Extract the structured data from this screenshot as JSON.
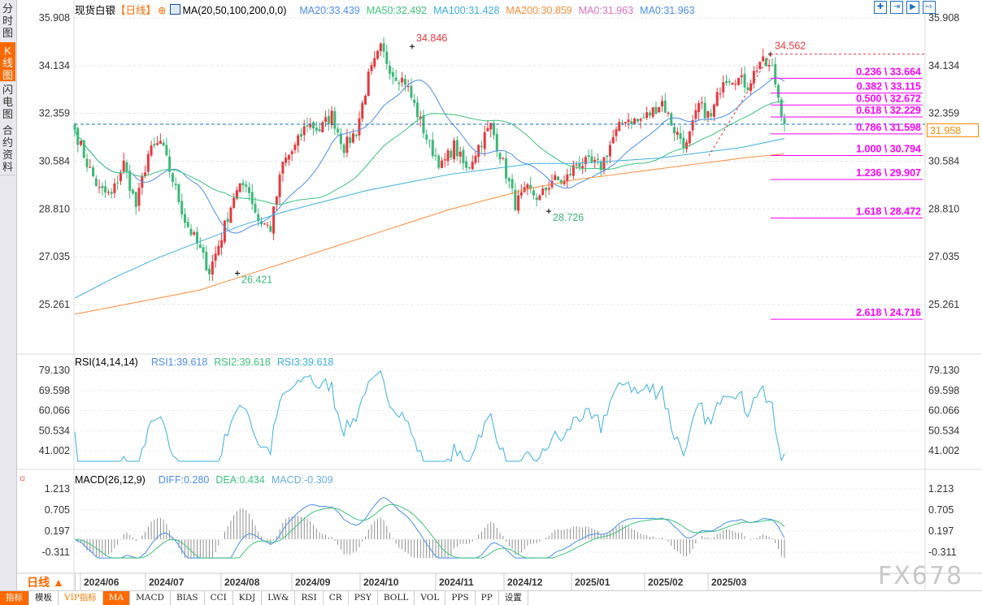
{
  "sidebar": {
    "tabs": [
      {
        "label": "分时图",
        "active": false
      },
      {
        "label": "K线图",
        "active": true
      },
      {
        "label": "闪电图",
        "active": false
      },
      {
        "label": "合约资料",
        "active": false
      }
    ]
  },
  "header": {
    "instrument": "现货白银",
    "period_tag": "【日线】",
    "ma_label": "MA(20,50,100,200,0,0)",
    "ma_values": [
      {
        "text": "MA20:33.439",
        "color": "#4a8ef0"
      },
      {
        "text": "MA50:32.492",
        "color": "#3cc47c"
      },
      {
        "text": "MA100:31.428",
        "color": "#3cb0e0"
      },
      {
        "text": "MA200:30.859",
        "color": "#ff8c3a"
      },
      {
        "text": "MA0:31.963",
        "color": "#e070c0"
      },
      {
        "text": "MA0:31.963",
        "color": "#4a8ef0"
      }
    ]
  },
  "rsi_header": {
    "label": "RSI(14,14,14)",
    "values": [
      {
        "text": "RSI1:39.618",
        "color": "#4a8ef0"
      },
      {
        "text": "RSI2:39.618",
        "color": "#3cc47c"
      },
      {
        "text": "RSI3:39.618",
        "color": "#3cb0e0"
      }
    ]
  },
  "macd_header": {
    "label": "MACD(26,12,9)",
    "values": [
      {
        "text": "DIFF:0.280",
        "color": "#4a8ef0"
      },
      {
        "text": "DEA:0.434",
        "color": "#3cc47c"
      },
      {
        "text": "MACD:-0.309",
        "color": "#6aaee0"
      }
    ]
  },
  "last_price": "31.958",
  "period_button": "日线 ▲",
  "toolbar": [
    "指标",
    "模板",
    "VIP指标",
    "MA",
    "MACD",
    "BIAS",
    "CCI",
    "KDJ",
    "LW&",
    "RSI",
    "CR",
    "PSY",
    "BOLL",
    "VOL",
    "PPS",
    "PP",
    "设置"
  ],
  "tool_icons": [
    "crosshair-icon",
    "zoom-in-icon",
    "zoom-out-icon",
    "scroll-right-icon"
  ],
  "watermark": "FX678",
  "colors": {
    "up": "#e8383d",
    "down": "#3cb878",
    "ma20": "#4a8ef0",
    "ma50": "#3cc47c",
    "ma100": "#3cb0e0",
    "ma200": "#ff8c3a",
    "fib": "#ff00ff",
    "accent": "#ff6a00"
  },
  "chart_data": [
    {
      "type": "candlestick",
      "title": "现货白银",
      "ylim": [
        25.261,
        35.908
      ],
      "yticks": [
        "35.908",
        "34.134",
        "32.359",
        "30.584",
        "28.810",
        "27.035",
        "25.261"
      ],
      "xticks": [
        "2024/06",
        "2024/07",
        "2024/08",
        "2024/09",
        "2024/10",
        "2024/11",
        "2024/12",
        "2025/01",
        "2025/02",
        "2025/03"
      ],
      "approx_closes": [
        31.75,
        30.5,
        29.5,
        29.3,
        30.5,
        28.9,
        30.84,
        31.3,
        29.9,
        28.4,
        27.5,
        26.5,
        27.8,
        29.3,
        29.8,
        28.4,
        28.1,
        30.5,
        31.1,
        32.0,
        31.75,
        32.3,
        31.1,
        31.7,
        33.7,
        34.75,
        33.85,
        33.55,
        32.35,
        31.15,
        30.4,
        31.15,
        30.25,
        31.15,
        31.9,
        30.5,
        29.0,
        29.5,
        29.2,
        29.9,
        29.8,
        30.5,
        30.5,
        30.4,
        31.45,
        32.2,
        32.05,
        32.35,
        32.8,
        31.75,
        31.15,
        32.65,
        32.2,
        33.7,
        33.7,
        33.4,
        34.3,
        34.0,
        31.958
      ],
      "ma100_approx": [
        25.5,
        26.3,
        27.0,
        27.6,
        28.2,
        28.7,
        29.1,
        29.5,
        29.8,
        30.1,
        30.3,
        30.5,
        30.5,
        30.6,
        30.7,
        30.9,
        31.1,
        31.43
      ],
      "ma200_approx": [
        24.9,
        25.2,
        25.5,
        25.8,
        26.3,
        26.8,
        27.3,
        27.8,
        28.3,
        28.8,
        29.2,
        29.6,
        29.9,
        30.1,
        30.3,
        30.5,
        30.7,
        30.859
      ],
      "annotations": [
        {
          "label": "34.846",
          "value": 34.846,
          "kind": "high"
        },
        {
          "label": "26.421",
          "value": 26.421,
          "kind": "low"
        },
        {
          "label": "28.726",
          "value": 28.726,
          "kind": "low"
        },
        {
          "label": "34.562",
          "value": 34.562,
          "kind": "high"
        }
      ],
      "fibonacci": [
        {
          "label": "0.236 \\ 33.664",
          "value": 33.664
        },
        {
          "label": "0.382 \\ 33.115",
          "value": 33.115
        },
        {
          "label": "0.500 \\ 32.672",
          "value": 32.672
        },
        {
          "label": "0.618 \\ 32.229",
          "value": 32.229
        },
        {
          "label": "0.786 \\ 31.598",
          "value": 31.598
        },
        {
          "label": "1.000 \\ 30.794",
          "value": 30.794
        },
        {
          "label": "1.236 \\ 29.907",
          "value": 29.907
        },
        {
          "label": "1.618 \\ 28.472",
          "value": 28.472
        },
        {
          "label": "2.618 \\ 24.716",
          "value": 24.716
        }
      ]
    },
    {
      "type": "line",
      "title": "RSI(14,14,14)",
      "ylim": [
        35,
        82
      ],
      "yticks": [
        "79.130",
        "69.598",
        "60.066",
        "50.534",
        "41.002"
      ],
      "last": 39.618
    },
    {
      "type": "bar+line",
      "title": "MACD(26,12,9)",
      "ylim": [
        -0.5,
        1.3
      ],
      "yticks": [
        "1.213",
        "0.705",
        "0.197",
        "-0.311"
      ],
      "diff": 0.28,
      "dea": 0.434,
      "macd": -0.309
    }
  ]
}
